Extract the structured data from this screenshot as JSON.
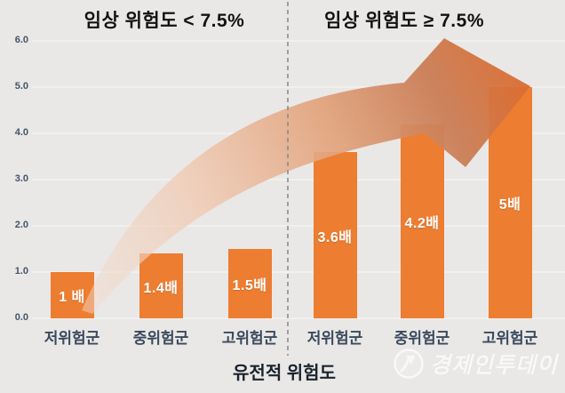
{
  "titles": {
    "left": "임상 위험도 < 7.5%",
    "right": "임상 위험도 ≥ 7.5%"
  },
  "chart_data": {
    "type": "bar",
    "xlabel": "유전적 위험도",
    "ylabel": "",
    "ylim": [
      0,
      6
    ],
    "yticks": [
      "0.0",
      "1.0",
      "2.0",
      "3.0",
      "4.0",
      "5.0",
      "6.0"
    ],
    "grid": true,
    "legend": false,
    "groups": [
      {
        "condition": "임상 위험도 < 7.5%",
        "categories": [
          "저위험군",
          "중위험군",
          "고위험군"
        ],
        "values": [
          1.0,
          1.4,
          1.5
        ],
        "bar_labels": [
          "1 배",
          "1.4배",
          "1.5배"
        ]
      },
      {
        "condition": "임상 위험도 ≥ 7.5%",
        "categories": [
          "저위험군",
          "중위험군",
          "고위험군"
        ],
        "values": [
          3.6,
          4.2,
          5.0
        ],
        "bar_labels": [
          "3.6배",
          "4.2배",
          "5배"
        ]
      }
    ],
    "annotations": {
      "divider": "dashed vertical line between the two clinical-risk groups",
      "trend_arrow": "curved orange arrow rising from the lowest bar to the highest bar"
    }
  },
  "watermark": {
    "brand": "경제인투데이"
  },
  "colors": {
    "background": "#E9E8E6",
    "bar": "#ED7D31",
    "bar_label": "#FFFFFF",
    "title": "#121212",
    "axis_tick": "#44546A",
    "category_label": "#3B4A5E",
    "xlabel": "#1A232E",
    "divider": "#8C8C8C",
    "gridline": "rgba(255,255,255,0.65)",
    "arrow_stops": [
      "#F2DCCF",
      "#F0CBB4",
      "#E2A37C",
      "#CA7E57",
      "#DB6C30"
    ],
    "watermark": "#FFFFFF"
  }
}
